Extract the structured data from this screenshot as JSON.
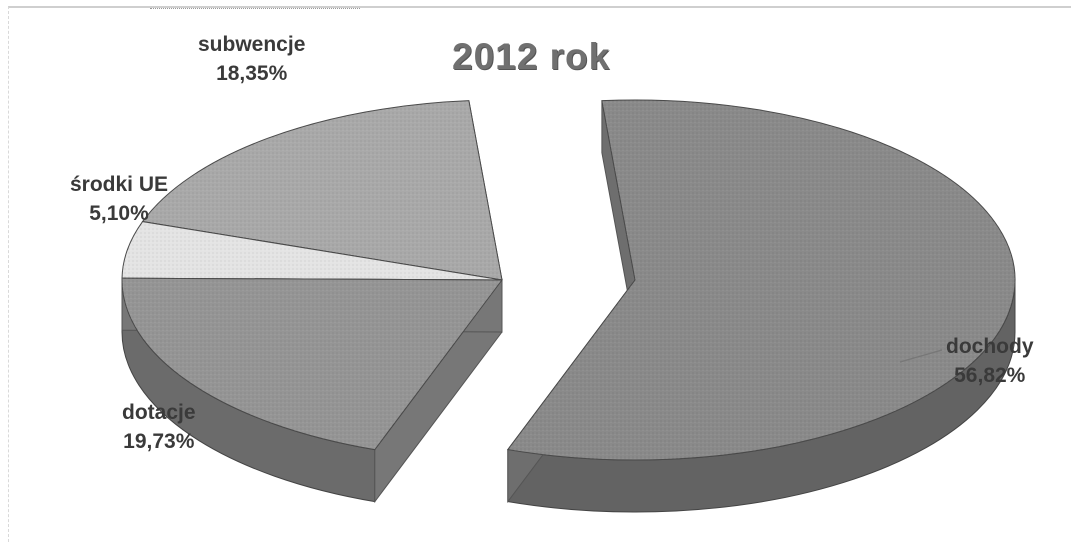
{
  "chart_data": {
    "type": "pie",
    "title": "2012 rok",
    "slices": [
      {
        "label": "dochody",
        "value": 56.82,
        "display": "56,82%",
        "color": "#8a8a8a"
      },
      {
        "label": "dotacje",
        "value": 19.73,
        "display": "19,73%",
        "color": "#959595"
      },
      {
        "label": "środki UE",
        "value": 5.1,
        "display": "5,10%",
        "color": "#e4e4e4"
      },
      {
        "label": "subwencje",
        "value": 18.35,
        "display": "18,35%",
        "color": "#a9a9a9"
      }
    ]
  }
}
